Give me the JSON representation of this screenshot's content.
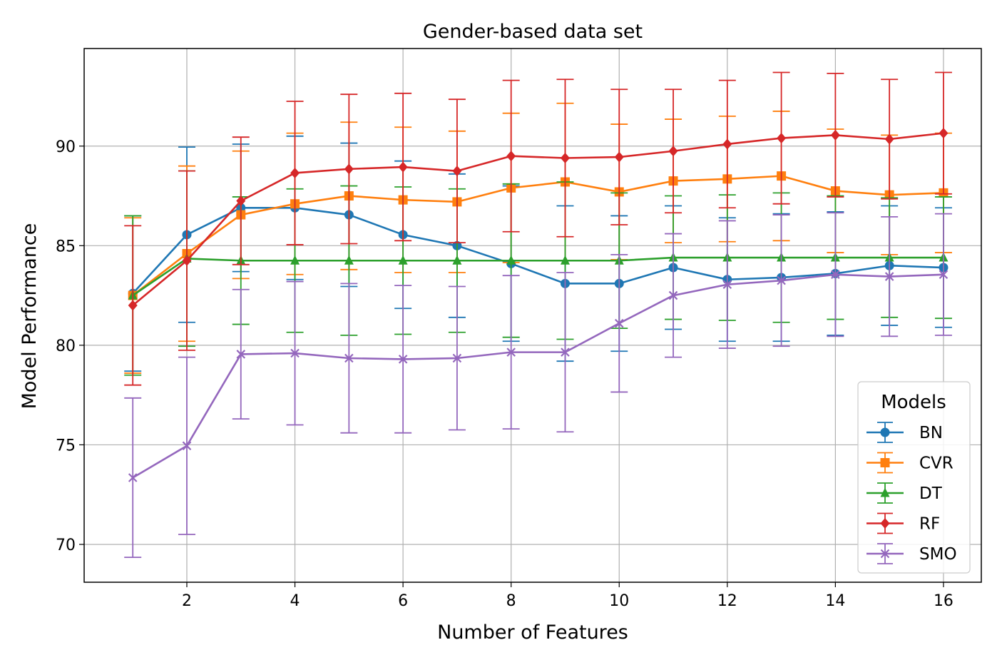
{
  "chart_data": {
    "type": "line",
    "title": "Gender-based data set",
    "xlabel": "Number of Features",
    "ylabel": "Model Performance",
    "xlim": [
      0.1,
      16.7
    ],
    "ylim": [
      68.1,
      94.9
    ],
    "xticks": [
      2,
      4,
      6,
      8,
      10,
      12,
      14,
      16
    ],
    "yticks": [
      70,
      75,
      80,
      85,
      90
    ],
    "grid": true,
    "legend": {
      "title": "Models",
      "position": "lower-right"
    },
    "x": [
      1,
      2,
      3,
      4,
      5,
      6,
      7,
      8,
      9,
      10,
      11,
      12,
      13,
      14,
      15,
      16
    ],
    "series": [
      {
        "name": "BN",
        "color": "#1f77b4",
        "marker": "circle",
        "values": [
          82.6,
          85.55,
          86.9,
          86.9,
          86.55,
          85.55,
          85.0,
          84.1,
          83.1,
          83.1,
          83.9,
          83.3,
          83.4,
          83.6,
          84.0,
          83.9
        ],
        "errors": [
          3.9,
          4.4,
          3.2,
          3.6,
          3.6,
          3.7,
          3.6,
          3.9,
          3.9,
          3.4,
          3.1,
          3.1,
          3.2,
          3.1,
          3.0,
          3.0
        ]
      },
      {
        "name": "CVR",
        "color": "#ff7f0e",
        "marker": "square",
        "values": [
          82.5,
          84.6,
          86.55,
          87.1,
          87.5,
          87.3,
          87.2,
          87.9,
          88.2,
          87.7,
          88.25,
          88.35,
          88.5,
          87.75,
          87.55,
          87.65
        ],
        "errors": [
          3.9,
          4.4,
          3.2,
          3.55,
          3.7,
          3.65,
          3.55,
          3.75,
          3.95,
          3.4,
          3.1,
          3.15,
          3.25,
          3.1,
          3.0,
          3.0
        ]
      },
      {
        "name": "DT",
        "color": "#2ca02c",
        "marker": "triangle",
        "values": [
          82.5,
          84.35,
          84.25,
          84.25,
          84.25,
          84.25,
          84.25,
          84.25,
          84.25,
          84.25,
          84.4,
          84.4,
          84.4,
          84.4,
          84.4,
          84.4
        ],
        "errors": [
          4.0,
          4.4,
          3.2,
          3.6,
          3.75,
          3.7,
          3.6,
          3.85,
          3.95,
          3.4,
          3.1,
          3.15,
          3.25,
          3.1,
          3.0,
          3.05
        ]
      },
      {
        "name": "RF",
        "color": "#d62728",
        "marker": "diamond",
        "values": [
          82.0,
          84.25,
          87.25,
          88.65,
          88.85,
          88.95,
          88.75,
          89.5,
          89.4,
          89.45,
          89.75,
          90.1,
          90.4,
          90.55,
          90.35,
          90.65
        ],
        "errors": [
          4.0,
          4.5,
          3.2,
          3.6,
          3.75,
          3.7,
          3.6,
          3.8,
          3.95,
          3.4,
          3.1,
          3.2,
          3.3,
          3.1,
          3.0,
          3.05
        ]
      },
      {
        "name": "SMO",
        "color": "#9467bd",
        "marker": "x",
        "values": [
          73.35,
          74.95,
          79.55,
          79.6,
          79.35,
          79.3,
          79.35,
          79.65,
          79.65,
          81.1,
          82.5,
          83.05,
          83.25,
          83.55,
          83.45,
          83.55
        ],
        "errors": [
          4.0,
          4.45,
          3.25,
          3.6,
          3.75,
          3.7,
          3.6,
          3.85,
          4.0,
          3.45,
          3.1,
          3.2,
          3.3,
          3.1,
          3.0,
          3.05
        ]
      }
    ]
  }
}
